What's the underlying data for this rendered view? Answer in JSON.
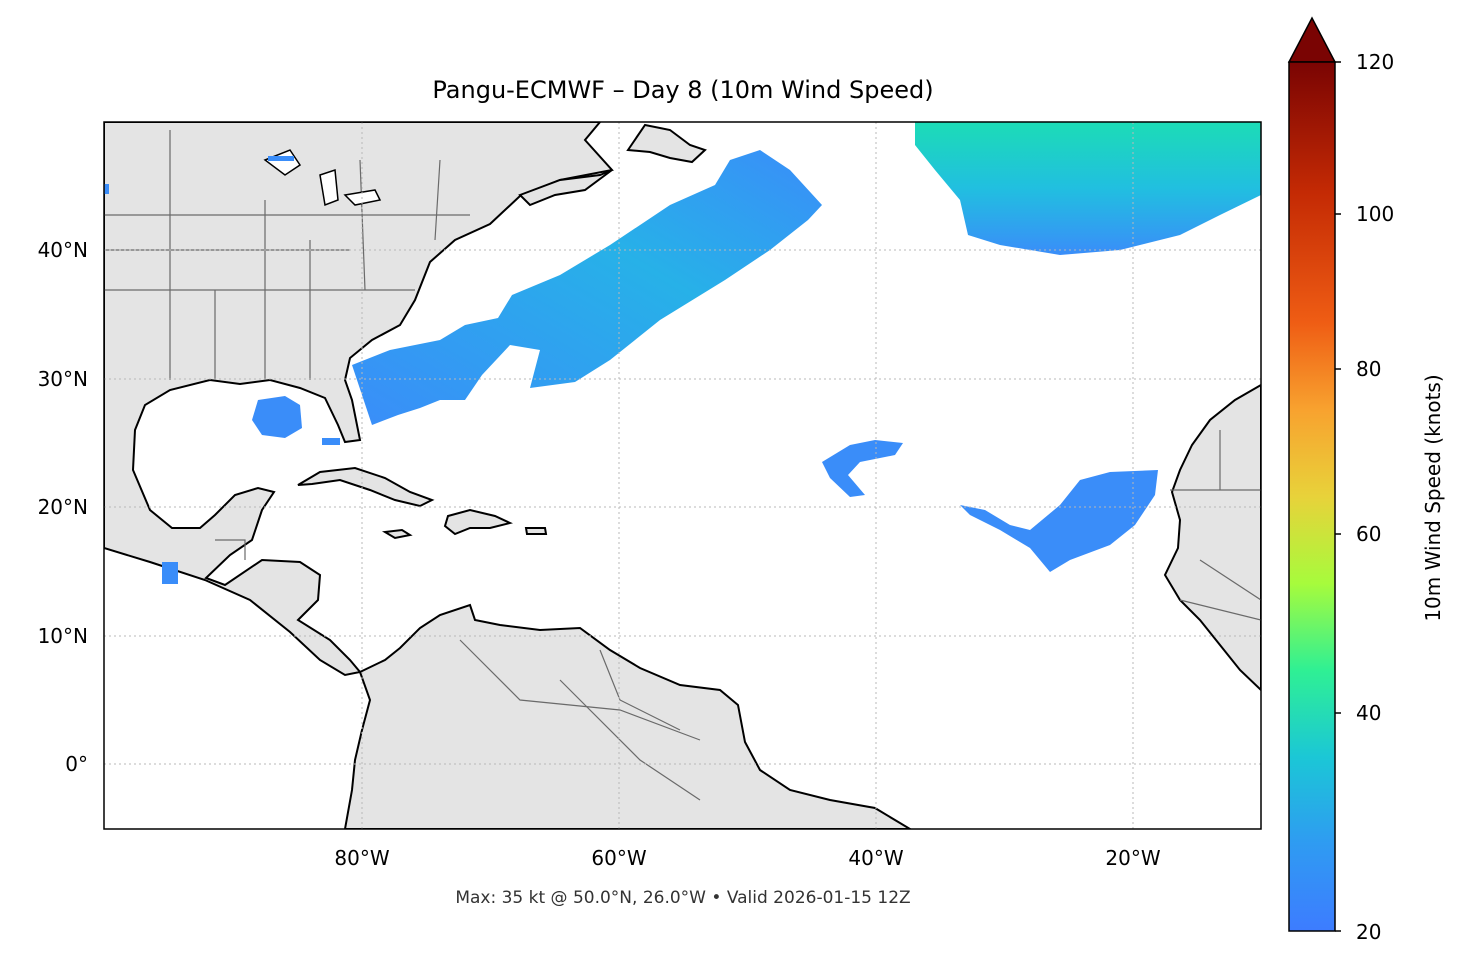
{
  "title": "Pangu-ECMWF – Day 8 (10m Wind Speed)",
  "footer": "Max: 35 kt @ 50.0°N, 26.0°W • Valid 2026-01-15 12Z",
  "map": {
    "lat_ticks": [
      "40°N",
      "30°N",
      "20°N",
      "10°N",
      "0°"
    ],
    "lon_ticks": [
      "80°W",
      "60°W",
      "40°W",
      "20°W"
    ],
    "extent": {
      "lon": [
        -100,
        -10
      ],
      "lat": [
        -5,
        50
      ]
    }
  },
  "colorbar": {
    "label": "10m Wind Speed (knots)",
    "ticks": [
      "20",
      "40",
      "60",
      "80",
      "100",
      "120"
    ],
    "range": [
      20,
      120
    ],
    "extend": "max",
    "colors": [
      "#3d7cff",
      "#1bc7d6",
      "#2ff094",
      "#a7fb3c",
      "#e8d23a",
      "#f8a22f",
      "#ef5d14",
      "#c42a04",
      "#7a0403"
    ]
  },
  "colors": {
    "land": "#e4e4e4",
    "ocean": "#ffffff",
    "coast": "#000000",
    "border": "#6a6a6a",
    "grid": "#b8b8b8"
  }
}
